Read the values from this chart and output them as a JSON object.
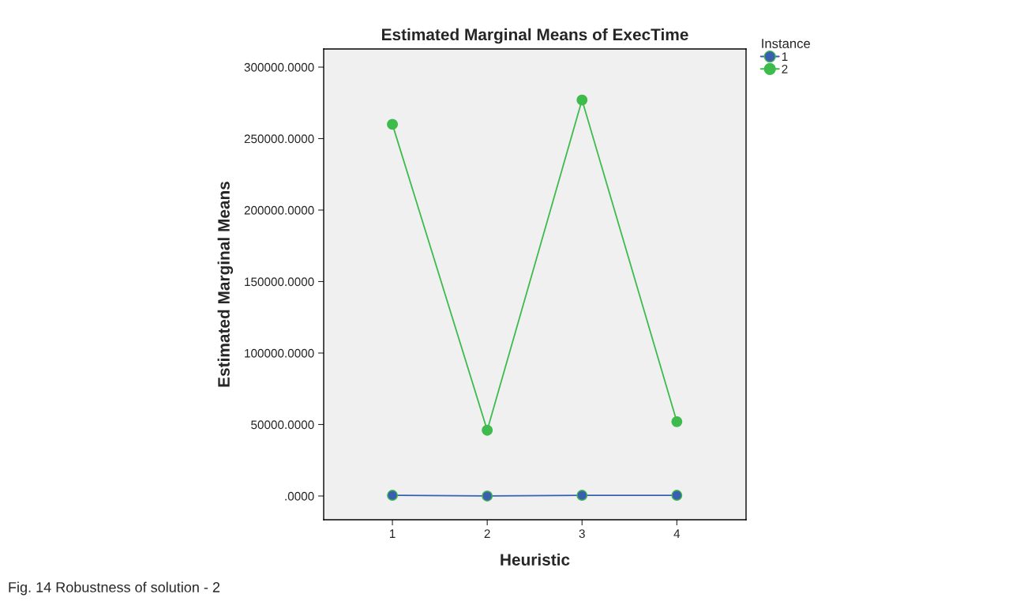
{
  "chart_data": {
    "type": "line",
    "title": "Estimated Marginal Means of ExecTime",
    "xlabel": "Heuristic",
    "ylabel": "Estimated Marginal Means",
    "legend_title": "Instance",
    "categories": [
      "1",
      "2",
      "3",
      "4"
    ],
    "series": [
      {
        "name": "1",
        "color": "#3a5fb0",
        "values": [
          500,
          0,
          500,
          500
        ]
      },
      {
        "name": "2",
        "color": "#3dbb4c",
        "values": [
          260000,
          46000,
          277000,
          52000
        ]
      }
    ],
    "ylim": [
      -16600,
      312700
    ],
    "yticks": [
      {
        "value": 0,
        "label": ".0000"
      },
      {
        "value": 50000,
        "label": "50000.0000"
      },
      {
        "value": 100000,
        "label": "100000.0000"
      },
      {
        "value": 150000,
        "label": "150000.0000"
      },
      {
        "value": 200000,
        "label": "200000.0000"
      },
      {
        "value": 250000,
        "label": "250000.0000"
      },
      {
        "value": 300000,
        "label": "300000.0000"
      }
    ],
    "marker": "circle",
    "line_style": "solid",
    "grid": false,
    "legend": "top right",
    "annotations": [
      "Fig. 14 Robustness of solution - 2"
    ]
  }
}
